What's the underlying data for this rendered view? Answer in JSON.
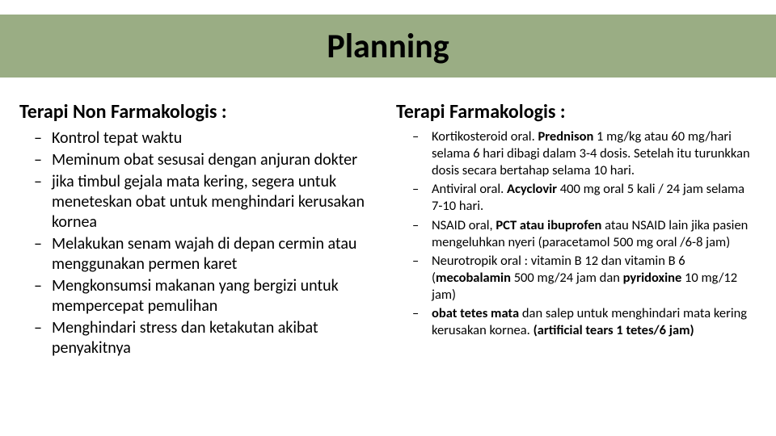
{
  "title_bar_bg": "#9aad84",
  "title": "Planning",
  "left": {
    "heading": "Terapi Non Farmakologis :",
    "items": [
      "Kontrol tepat waktu",
      "Meminum obat sesusai dengan anjuran dokter",
      "jika timbul gejala mata kering, segera untuk meneteskan obat untuk menghindari kerusakan kornea",
      "Melakukan senam wajah di depan cermin atau menggunakan permen karet",
      "Mengkonsumsi makanan yang bergizi untuk mempercepat pemulihan",
      "Menghindari stress dan ketakutan akibat penyakitnya"
    ]
  },
  "right": {
    "heading": "Terapi Farmakologis :",
    "items": [
      {
        "pre": "Kortikosteroid oral. ",
        "bold": "Prednison",
        "post": " 1 mg/kg atau 60 mg/hari selama 6 hari dibagi dalam 3-4 dosis. Setelah itu turunkkan dosis secara bertahap selama 10 hari."
      },
      {
        "pre": "Antiviral oral. ",
        "bold": "Acyclovir",
        "post": " 400 mg oral 5 kali / 24 jam selama 7-10 hari."
      },
      {
        "pre": " NSAID oral, ",
        "bold": "PCT atau ibuprofen",
        "post": " atau NSAID lain jika pasien mengeluhkan nyeri (paracetamol 500 mg oral /6-8 jam)"
      },
      {
        "pre": "Neurotropik oral : vitamin B 12 dan vitamin B 6 (",
        "bold": "mecobalamin",
        "post": " 500 mg/24 jam dan ",
        "bold2": "pyridoxine",
        "post2": " 10 mg/12 jam)"
      },
      {
        "bold": "obat tetes mata",
        "post": " dan salep untuk menghindari mata kering kerusakan kornea. ",
        "bold2": "(artificial tears 1 tetes/6 jam)"
      }
    ]
  },
  "text_color": "#000000",
  "slide_bg": "#ffffff"
}
